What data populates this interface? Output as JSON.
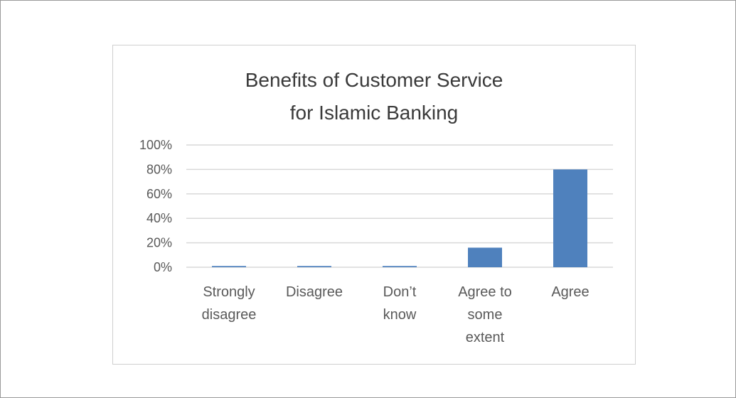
{
  "chart_data": {
    "type": "bar",
    "title_lines": [
      "Benefits of Customer Service",
      "for Islamic Banking"
    ],
    "categories": [
      [
        "Strongly",
        "disagree"
      ],
      [
        "Disagree"
      ],
      [
        "Don’t",
        "know"
      ],
      [
        "Agree to",
        "some",
        "extent"
      ],
      [
        "Agree"
      ]
    ],
    "values": [
      1,
      1,
      1,
      16,
      80
    ],
    "ylim": [
      0,
      100
    ],
    "yticks": [
      0,
      20,
      40,
      60,
      80,
      100
    ],
    "ytick_labels": [
      "0%",
      "20%",
      "40%",
      "60%",
      "80%",
      "100%"
    ],
    "grid": true,
    "legend": "none",
    "colors": {
      "bar": "#4f81bd",
      "grid": "#d9d9d9",
      "text": "#595959"
    }
  }
}
